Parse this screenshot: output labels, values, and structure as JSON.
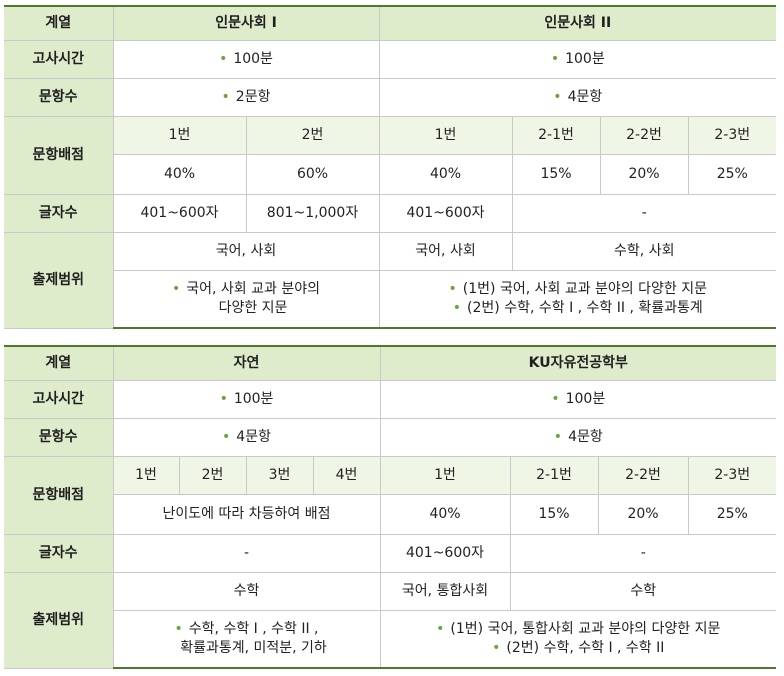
{
  "table1": {
    "header": {
      "label": "계열",
      "col_a": "인문사회 I",
      "col_b": "인문사회 II"
    },
    "time": {
      "label": "고사시간",
      "a": "100분",
      "b": "100분"
    },
    "count": {
      "label": "문항수",
      "a": "2문항",
      "b": "4문항"
    },
    "score": {
      "label": "문항배점",
      "a_items": [
        "1번",
        "2번"
      ],
      "a_values": [
        "40%",
        "60%"
      ],
      "b_items": [
        "1번",
        "2-1번",
        "2-2번",
        "2-3번"
      ],
      "b_values": [
        "40%",
        "15%",
        "20%",
        "25%"
      ]
    },
    "chars": {
      "label": "글자수",
      "a1": "401~600자",
      "a2": "801~1,000자",
      "b1": "401~600자",
      "b2": "-"
    },
    "scope": {
      "label": "출제범위",
      "a_subject": "국어, 사회",
      "b_subject1": "국어, 사회",
      "b_subject2": "수학, 사회",
      "a_desc_line1": "국어, 사회 교과 분야의",
      "a_desc_line2": "다양한 지문",
      "b_desc_line1": "(1번) 국어, 사회 교과 분야의 다양한 지문",
      "b_desc_line2": "(2번) 수학, 수학 I , 수학 II , 확률과통계"
    }
  },
  "table2": {
    "header": {
      "label": "계열",
      "col_a": "자연",
      "col_b": "KU자유전공학부"
    },
    "time": {
      "label": "고사시간",
      "a": "100분",
      "b": "100분"
    },
    "count": {
      "label": "문항수",
      "a": "4문항",
      "b": "4문항"
    },
    "score": {
      "label": "문항배점",
      "a_items": [
        "1번",
        "2번",
        "3번",
        "4번"
      ],
      "a_note": "난이도에 따라 차등하여 배점",
      "b_items": [
        "1번",
        "2-1번",
        "2-2번",
        "2-3번"
      ],
      "b_values": [
        "40%",
        "15%",
        "20%",
        "25%"
      ]
    },
    "chars": {
      "label": "글자수",
      "a": "-",
      "b1": "401~600자",
      "b2": "-"
    },
    "scope": {
      "label": "출제범위",
      "a_subject": "수학",
      "b_subject1": "국어, 통합사회",
      "b_subject2": "수학",
      "a_desc_line1": "수학, 수학 I , 수학 II ,",
      "a_desc_line2": "확률과통계, 미적분, 기하",
      "b_desc_line1": "(1번) 국어, 통합사회 교과 분야의 다양한 지문",
      "b_desc_line2": "(2번) 수학, 수학 I , 수학 II"
    }
  },
  "bullet": "•"
}
